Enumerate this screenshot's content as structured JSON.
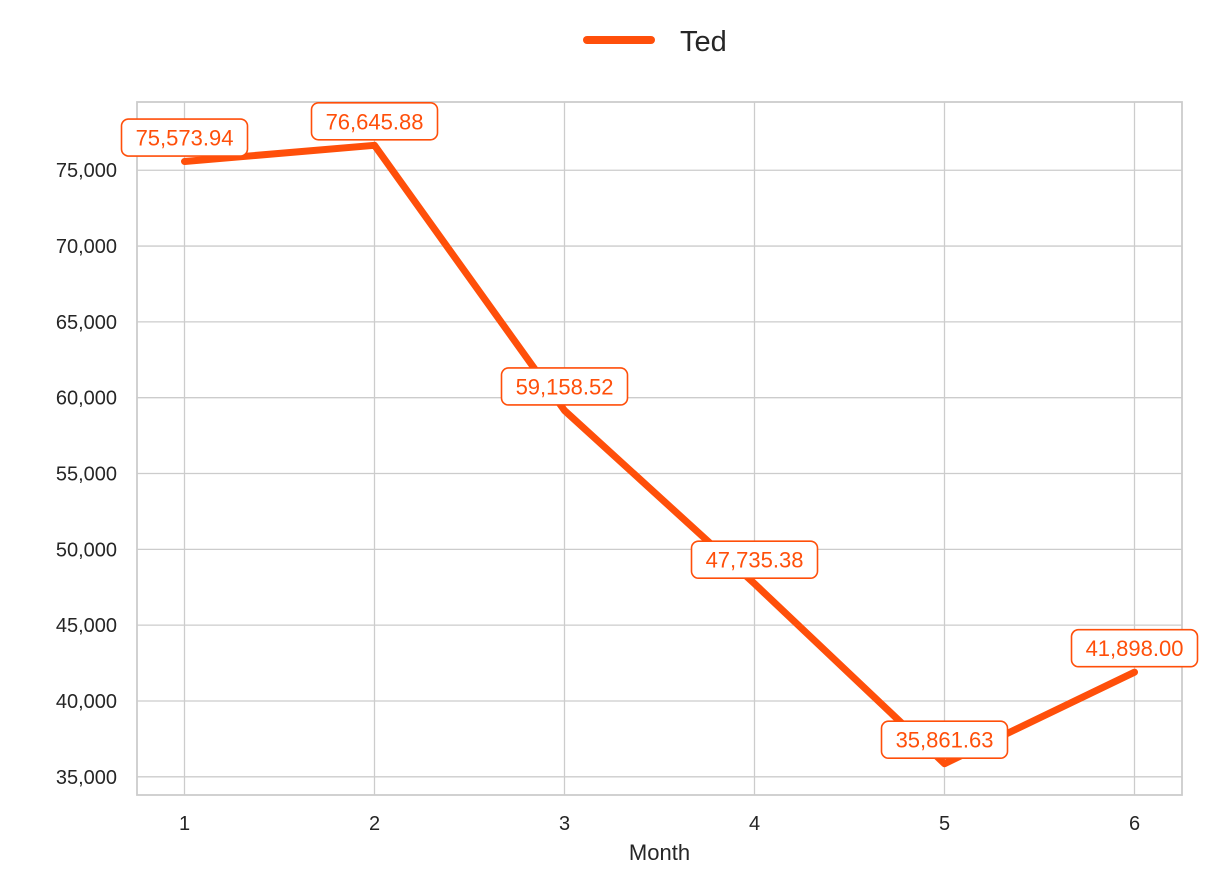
{
  "chart_data": {
    "type": "line",
    "xlabel": "Month",
    "ylabel": "",
    "x": [
      1,
      2,
      3,
      4,
      5,
      6
    ],
    "xlim": [
      0.75,
      6.25
    ],
    "ylim": [
      33800,
      79500
    ],
    "yticks": [
      35000,
      40000,
      45000,
      50000,
      55000,
      60000,
      65000,
      70000,
      75000
    ],
    "ytick_labels": [
      "35,000",
      "40,000",
      "45,000",
      "50,000",
      "55,000",
      "60,000",
      "65,000",
      "70,000",
      "75,000"
    ],
    "xtick_labels": [
      "1",
      "2",
      "3",
      "4",
      "5",
      "6"
    ],
    "grid": true,
    "legend": {
      "placement": "top-center"
    },
    "series": [
      {
        "name": "Ted",
        "color": "#ff4f0a",
        "values": [
          75573.94,
          76645.88,
          59158.52,
          47735.38,
          35861.63,
          41898.0
        ],
        "labels": [
          "75,573.94",
          "76,645.88",
          "59,158.52",
          "47,735.38",
          "35,861.63",
          "41,898.00"
        ]
      }
    ]
  }
}
